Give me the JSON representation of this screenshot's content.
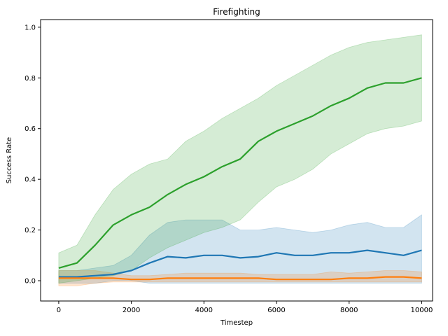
{
  "chart_data": {
    "type": "line",
    "title": "Firefighting",
    "xlabel": "Timestep",
    "ylabel": "Success Rate",
    "xlim": [
      -500,
      10300
    ],
    "ylim": [
      -0.08,
      1.03
    ],
    "xticks": [
      0,
      2000,
      4000,
      6000,
      8000,
      10000
    ],
    "yticks": [
      0.0,
      0.2,
      0.4,
      0.6,
      0.8,
      1.0
    ],
    "grid": false,
    "legend": "none",
    "x": [
      0,
      500,
      1000,
      1500,
      2000,
      2500,
      3000,
      3500,
      4000,
      4500,
      5000,
      5500,
      6000,
      6500,
      7000,
      7500,
      8000,
      8500,
      9000,
      9500,
      10000
    ],
    "series": [
      {
        "color": "#1f77b4",
        "values": [
          0.015,
          0.015,
          0.02,
          0.025,
          0.04,
          0.07,
          0.095,
          0.09,
          0.1,
          0.1,
          0.09,
          0.095,
          0.11,
          0.1,
          0.1,
          0.11,
          0.11,
          0.12,
          0.11,
          0.1,
          0.12
        ],
        "lower": [
          -0.01,
          -0.01,
          -0.01,
          0.0,
          0.0,
          -0.01,
          -0.01,
          -0.01,
          -0.01,
          -0.01,
          -0.01,
          -0.01,
          -0.01,
          -0.01,
          -0.01,
          -0.01,
          -0.01,
          -0.01,
          -0.01,
          -0.01,
          -0.01
        ],
        "upper": [
          0.04,
          0.04,
          0.05,
          0.06,
          0.1,
          0.18,
          0.23,
          0.24,
          0.24,
          0.24,
          0.2,
          0.2,
          0.21,
          0.2,
          0.19,
          0.2,
          0.22,
          0.23,
          0.21,
          0.21,
          0.26
        ]
      },
      {
        "color": "#ff7f0e",
        "values": [
          0.01,
          0.01,
          0.01,
          0.01,
          0.005,
          0.005,
          0.01,
          0.01,
          0.01,
          0.01,
          0.01,
          0.01,
          0.005,
          0.005,
          0.005,
          0.005,
          0.01,
          0.01,
          0.015,
          0.015,
          0.01
        ],
        "lower": [
          -0.02,
          -0.02,
          -0.01,
          -0.005,
          -0.005,
          -0.005,
          -0.005,
          -0.005,
          -0.005,
          -0.005,
          -0.005,
          -0.005,
          -0.005,
          -0.005,
          -0.005,
          -0.005,
          -0.005,
          -0.005,
          -0.005,
          -0.005,
          -0.005
        ],
        "upper": [
          0.04,
          0.04,
          0.04,
          0.03,
          0.02,
          0.02,
          0.025,
          0.03,
          0.03,
          0.03,
          0.03,
          0.025,
          0.025,
          0.025,
          0.025,
          0.035,
          0.03,
          0.035,
          0.04,
          0.04,
          0.035
        ]
      },
      {
        "color": "#2ca02c",
        "values": [
          0.05,
          0.07,
          0.14,
          0.22,
          0.26,
          0.29,
          0.34,
          0.38,
          0.41,
          0.45,
          0.48,
          0.55,
          0.59,
          0.62,
          0.65,
          0.69,
          0.72,
          0.76,
          0.78,
          0.78,
          0.8
        ],
        "lower": [
          -0.01,
          0.0,
          0.01,
          0.02,
          0.04,
          0.09,
          0.13,
          0.16,
          0.19,
          0.21,
          0.24,
          0.31,
          0.37,
          0.4,
          0.44,
          0.5,
          0.54,
          0.58,
          0.6,
          0.61,
          0.63
        ],
        "upper": [
          0.11,
          0.14,
          0.26,
          0.36,
          0.42,
          0.46,
          0.48,
          0.55,
          0.59,
          0.64,
          0.68,
          0.72,
          0.77,
          0.81,
          0.85,
          0.89,
          0.92,
          0.94,
          0.95,
          0.96,
          0.97
        ]
      }
    ]
  }
}
